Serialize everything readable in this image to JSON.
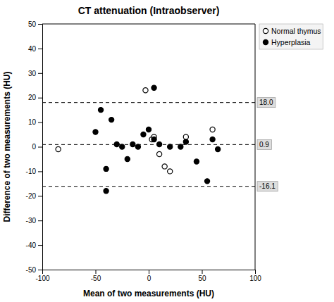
{
  "chart_data": {
    "type": "scatter",
    "title": "CT attenuation (Intraobserver)",
    "x_label": "Mean of two measurements (HU)",
    "y_label": "Difference of two measurements (HU)",
    "xlim": [
      -100,
      100
    ],
    "ylim": [
      -50,
      50
    ],
    "xticks": [
      -100,
      -50,
      0,
      50,
      100
    ],
    "yticks": [
      -50,
      -40,
      -30,
      -20,
      -10,
      0,
      10,
      20,
      30,
      40,
      50
    ],
    "grid": false,
    "legend": "upper right",
    "series": [
      {
        "name": "Normal thymus",
        "color": "#000000",
        "marker": "circle-open",
        "x": [
          -85,
          -3,
          3,
          5,
          10,
          15,
          20,
          35,
          60
        ],
        "values": [
          -1,
          23,
          3,
          4,
          -3,
          -8,
          -10,
          4,
          7
        ]
      },
      {
        "name": "Hyperplasia",
        "color": "#000000",
        "marker": "circle",
        "x": [
          -50,
          -45,
          -40,
          -35,
          -30,
          -25,
          -20,
          -15,
          -10,
          -5,
          0,
          5,
          5,
          10,
          20,
          30,
          35,
          45,
          55,
          60,
          65,
          -40
        ],
        "values": [
          6,
          15,
          -9,
          11,
          1,
          0,
          -5,
          1,
          0,
          5,
          7,
          24,
          3,
          1,
          0,
          0,
          2,
          -6,
          -14,
          3,
          -1,
          -18
        ]
      }
    ],
    "hlines": [
      {
        "value": 0.9,
        "label": "0.9",
        "line_style": "dashed"
      },
      {
        "value": 18.0,
        "label": "18.0",
        "line_style": "dashed"
      },
      {
        "value": -16.1,
        "label": "-16.1",
        "line_style": "dashed"
      }
    ]
  }
}
